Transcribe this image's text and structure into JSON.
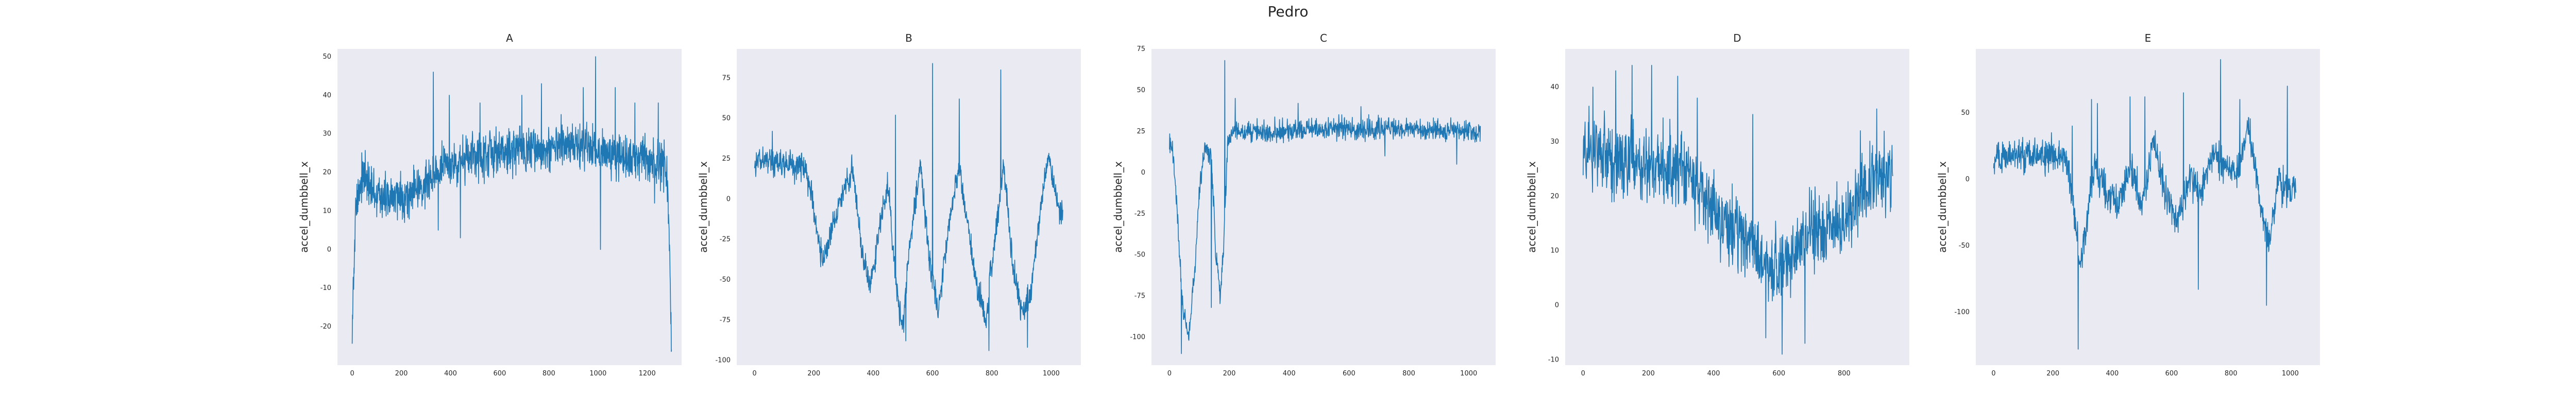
{
  "suptitle": "Pedro",
  "series_color": "#1f77b4",
  "background_color": "#eaeaf2",
  "chart_data": [
    {
      "type": "line",
      "title": "A",
      "xlabel": "",
      "ylabel": "accel_dumbbell_x",
      "grid": false,
      "xlim": [
        -60,
        1340
      ],
      "ylim": [
        -30,
        52
      ],
      "xticks": [
        0,
        200,
        400,
        600,
        800,
        1000,
        1200
      ],
      "yticks": [
        -20,
        -10,
        0,
        10,
        20,
        30,
        40,
        50
      ],
      "n_points": 1300,
      "profile": [
        [
          0,
          -20
        ],
        [
          5,
          -8
        ],
        [
          15,
          10
        ],
        [
          40,
          20
        ],
        [
          80,
          15
        ],
        [
          150,
          13
        ],
        [
          220,
          14
        ],
        [
          280,
          16
        ],
        [
          330,
          20
        ],
        [
          400,
          22
        ],
        [
          500,
          24
        ],
        [
          600,
          25
        ],
        [
          700,
          26
        ],
        [
          800,
          26
        ],
        [
          900,
          27
        ],
        [
          1000,
          26
        ],
        [
          1100,
          24
        ],
        [
          1200,
          23
        ],
        [
          1270,
          22
        ],
        [
          1285,
          15
        ],
        [
          1299,
          -25
        ]
      ],
      "noise": 4.2,
      "spikes": [
        [
          330,
          46
        ],
        [
          350,
          5
        ],
        [
          395,
          40
        ],
        [
          440,
          3
        ],
        [
          520,
          38
        ],
        [
          690,
          40
        ],
        [
          770,
          43
        ],
        [
          850,
          35
        ],
        [
          940,
          42
        ],
        [
          990,
          50
        ],
        [
          1010,
          0
        ],
        [
          1070,
          42
        ],
        [
          1150,
          38
        ],
        [
          1230,
          12
        ],
        [
          1245,
          38
        ]
      ]
    },
    {
      "type": "line",
      "title": "B",
      "xlabel": "",
      "ylabel": "accel_dumbbell_x",
      "grid": false,
      "xlim": [
        -60,
        1100
      ],
      "ylim": [
        -103,
        93
      ],
      "xticks": [
        0,
        200,
        400,
        600,
        800,
        1000
      ],
      "yticks": [
        -100,
        -75,
        -50,
        -25,
        0,
        25,
        50,
        75
      ],
      "n_points": 1040,
      "profile": [
        [
          0,
          25
        ],
        [
          100,
          22
        ],
        [
          170,
          20
        ],
        [
          190,
          5
        ],
        [
          230,
          -40
        ],
        [
          260,
          -20
        ],
        [
          290,
          0
        ],
        [
          330,
          20
        ],
        [
          360,
          -30
        ],
        [
          390,
          -55
        ],
        [
          420,
          -20
        ],
        [
          450,
          10
        ],
        [
          480,
          -60
        ],
        [
          500,
          -80
        ],
        [
          520,
          -30
        ],
        [
          560,
          20
        ],
        [
          590,
          -40
        ],
        [
          620,
          -70
        ],
        [
          650,
          -20
        ],
        [
          690,
          20
        ],
        [
          720,
          -20
        ],
        [
          750,
          -55
        ],
        [
          780,
          -75
        ],
        [
          800,
          -40
        ],
        [
          840,
          20
        ],
        [
          870,
          -40
        ],
        [
          900,
          -70
        ],
        [
          930,
          -60
        ],
        [
          960,
          -10
        ],
        [
          990,
          25
        ],
        [
          1030,
          -10
        ]
      ],
      "noise": 6,
      "spikes": [
        [
          60,
          42
        ],
        [
          475,
          52
        ],
        [
          510,
          -88
        ],
        [
          600,
          84
        ],
        [
          690,
          62
        ],
        [
          790,
          -94
        ],
        [
          830,
          80
        ],
        [
          920,
          -92
        ]
      ]
    },
    {
      "type": "line",
      "title": "C",
      "xlabel": "",
      "ylabel": "accel_dumbbell_x",
      "grid": false,
      "xlim": [
        -60,
        1090
      ],
      "ylim": [
        -117,
        75
      ],
      "xticks": [
        0,
        200,
        400,
        600,
        800,
        1000
      ],
      "yticks": [
        -100,
        -75,
        -50,
        -25,
        0,
        25,
        50,
        75
      ],
      "n_points": 1040,
      "profile": [
        [
          0,
          18
        ],
        [
          10,
          15
        ],
        [
          25,
          -20
        ],
        [
          45,
          -85
        ],
        [
          65,
          -100
        ],
        [
          85,
          -60
        ],
        [
          100,
          -10
        ],
        [
          120,
          15
        ],
        [
          140,
          10
        ],
        [
          155,
          -50
        ],
        [
          170,
          -75
        ],
        [
          180,
          -50
        ],
        [
          195,
          20
        ],
        [
          230,
          25
        ],
        [
          300,
          25
        ],
        [
          400,
          26
        ],
        [
          500,
          26
        ],
        [
          600,
          27
        ],
        [
          700,
          27
        ],
        [
          800,
          26
        ],
        [
          900,
          25
        ],
        [
          1000,
          26
        ],
        [
          1035,
          24
        ]
      ],
      "noise": 4.5,
      "spikes": [
        [
          40,
          -110
        ],
        [
          140,
          -82
        ],
        [
          185,
          68
        ],
        [
          220,
          45
        ],
        [
          430,
          42
        ],
        [
          640,
          40
        ],
        [
          720,
          10
        ],
        [
          960,
          5
        ]
      ]
    },
    {
      "type": "line",
      "title": "D",
      "xlabel": "",
      "ylabel": "accel_dumbbell_x",
      "grid": false,
      "xlim": [
        -55,
        1000
      ],
      "ylim": [
        -11,
        47
      ],
      "xticks": [
        0,
        200,
        400,
        600,
        800
      ],
      "yticks": [
        -10,
        0,
        10,
        20,
        30,
        40
      ],
      "n_points": 950,
      "profile": [
        [
          0,
          28
        ],
        [
          100,
          27
        ],
        [
          200,
          26
        ],
        [
          300,
          24
        ],
        [
          350,
          22
        ],
        [
          400,
          18
        ],
        [
          450,
          14
        ],
        [
          500,
          12
        ],
        [
          550,
          9
        ],
        [
          600,
          6
        ],
        [
          650,
          10
        ],
        [
          700,
          13
        ],
        [
          750,
          14
        ],
        [
          800,
          15
        ],
        [
          850,
          20
        ],
        [
          900,
          25
        ],
        [
          949,
          24
        ]
      ],
      "noise": 5,
      "spikes": [
        [
          30,
          40
        ],
        [
          100,
          43
        ],
        [
          150,
          44
        ],
        [
          210,
          44
        ],
        [
          290,
          42
        ],
        [
          350,
          38
        ],
        [
          520,
          35
        ],
        [
          610,
          -9
        ],
        [
          680,
          -7
        ],
        [
          560,
          -6
        ],
        [
          850,
          32
        ],
        [
          900,
          36
        ]
      ]
    },
    {
      "type": "line",
      "title": "E",
      "xlabel": "",
      "ylabel": "accel_dumbbell_x",
      "grid": false,
      "xlim": [
        -60,
        1100
      ],
      "ylim": [
        -140,
        98
      ],
      "xticks": [
        0,
        200,
        400,
        600,
        800,
        1000
      ],
      "yticks": [
        -100,
        -50,
        0,
        50
      ],
      "n_points": 1020,
      "profile": [
        [
          0,
          15
        ],
        [
          60,
          18
        ],
        [
          150,
          16
        ],
        [
          240,
          20
        ],
        [
          270,
          -20
        ],
        [
          290,
          -60
        ],
        [
          310,
          -40
        ],
        [
          340,
          10
        ],
        [
          380,
          -10
        ],
        [
          420,
          -20
        ],
        [
          460,
          10
        ],
        [
          500,
          -20
        ],
        [
          540,
          30
        ],
        [
          580,
          -10
        ],
        [
          620,
          -30
        ],
        [
          660,
          0
        ],
        [
          700,
          -10
        ],
        [
          740,
          20
        ],
        [
          780,
          10
        ],
        [
          820,
          5
        ],
        [
          860,
          40
        ],
        [
          900,
          -20
        ],
        [
          930,
          -50
        ],
        [
          960,
          0
        ],
        [
          1000,
          -10
        ],
        [
          1010,
          -5
        ]
      ],
      "noise": 9,
      "spikes": [
        [
          30,
          28
        ],
        [
          195,
          35
        ],
        [
          265,
          40
        ],
        [
          285,
          -128
        ],
        [
          330,
          60
        ],
        [
          350,
          57
        ],
        [
          460,
          62
        ],
        [
          510,
          62
        ],
        [
          640,
          65
        ],
        [
          690,
          -83
        ],
        [
          765,
          90
        ],
        [
          830,
          60
        ],
        [
          920,
          -95
        ],
        [
          990,
          70
        ]
      ]
    }
  ]
}
